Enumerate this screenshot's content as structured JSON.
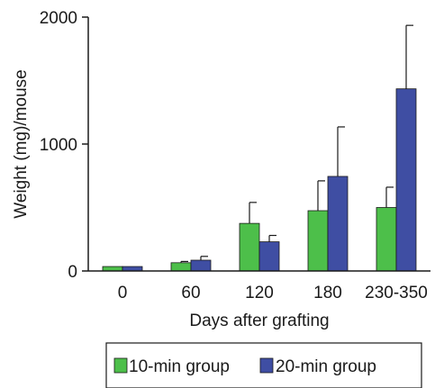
{
  "chart_data": {
    "type": "bar",
    "categories": [
      "0",
      "60",
      "120",
      "180",
      "230-350"
    ],
    "series": [
      {
        "name": "10-min group",
        "color": "#4dbf4a",
        "values": [
          35,
          65,
          375,
          475,
          500
        ],
        "errors": [
          0,
          10,
          165,
          235,
          160
        ]
      },
      {
        "name": "20-min group",
        "color": "#3f4ea3",
        "values": [
          35,
          85,
          230,
          745,
          1435
        ],
        "errors": [
          0,
          30,
          50,
          390,
          500
        ]
      }
    ],
    "xlabel": "Days after grafting",
    "ylabel": "Weight (mg)/mouse",
    "ylim": [
      0,
      2000
    ],
    "yticks": [
      "0",
      "1000",
      "2000"
    ],
    "error_bars": "upper only",
    "grid": false,
    "legend_position": "bottom"
  }
}
